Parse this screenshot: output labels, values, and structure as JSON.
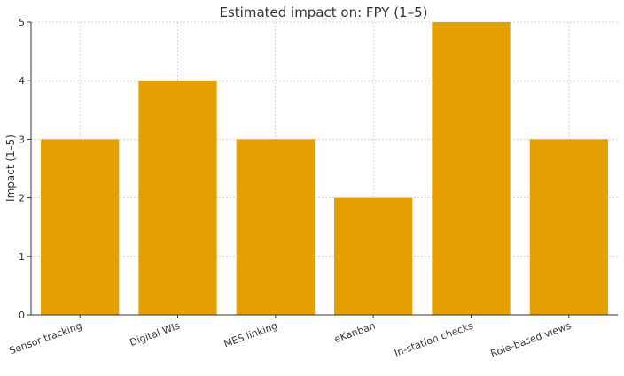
{
  "chart_data": {
    "type": "bar",
    "title": "Estimated impact on: FPY (1–5)",
    "xlabel": "",
    "ylabel": "Impact (1–5)",
    "categories": [
      "Sensor tracking",
      "Digital WIs",
      "MES linking",
      "eKanban",
      "In-station checks",
      "Role-based views"
    ],
    "values": [
      3,
      4,
      3,
      2,
      5,
      3
    ],
    "ylim": [
      0,
      5
    ],
    "yticks": [
      "0",
      "1",
      "2",
      "3",
      "4",
      "5"
    ],
    "grid": true,
    "bar_color": "#E69F00"
  }
}
